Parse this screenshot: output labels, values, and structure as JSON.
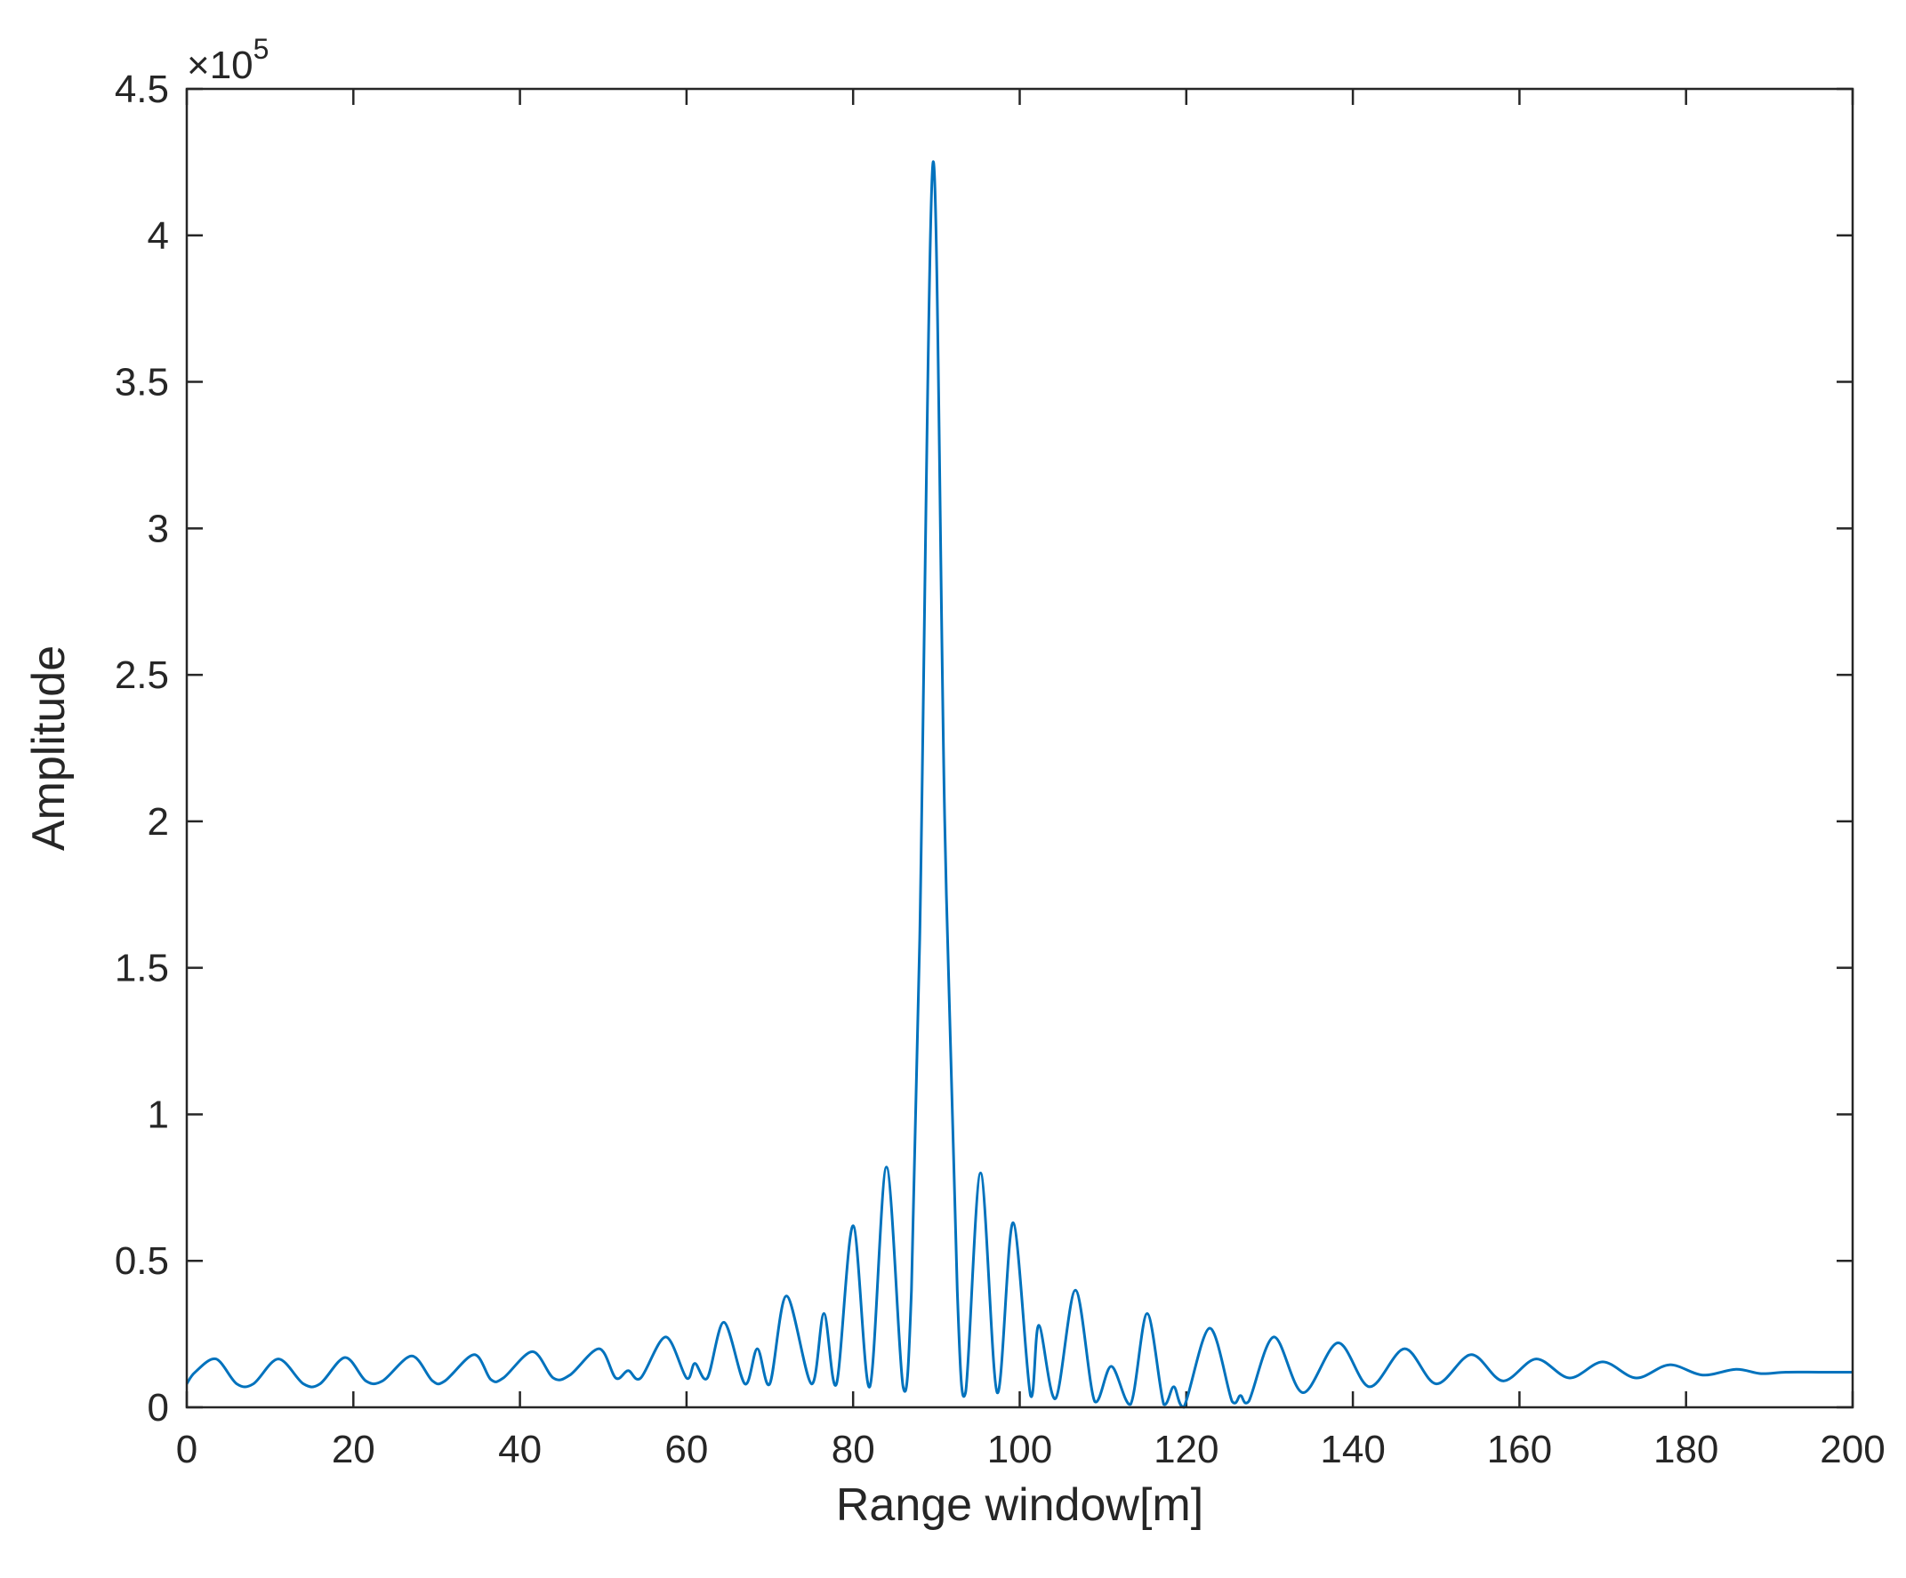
{
  "chart_data": {
    "type": "line",
    "title": "",
    "xlabel": "Range window[m]",
    "ylabel": "Amplitude",
    "xlim": [
      0,
      200
    ],
    "ylim": [
      0,
      4.5
    ],
    "y_exponent_label": "×10",
    "y_exponent_power": "5",
    "x_ticks": [
      0,
      20,
      40,
      60,
      80,
      100,
      120,
      140,
      160,
      180,
      200
    ],
    "x_tick_labels": [
      "0",
      "20",
      "40",
      "60",
      "80",
      "100",
      "120",
      "140",
      "160",
      "180",
      "200"
    ],
    "y_ticks": [
      0,
      0.5,
      1,
      1.5,
      2,
      2.5,
      3,
      3.5,
      4,
      4.5
    ],
    "y_tick_labels": [
      "0",
      "0.5",
      "1",
      "1.5",
      "2",
      "2.5",
      "3",
      "3.5",
      "4",
      "4.5"
    ],
    "grid": false,
    "series": [
      {
        "color": "#0072BD",
        "x": [
          0,
          1,
          3.5,
          6,
          8,
          11,
          14,
          16,
          19,
          21.5,
          23.5,
          27,
          29.5,
          31,
          34.5,
          36.5,
          38,
          41.5,
          44,
          46,
          49.5,
          51.5,
          53,
          54.5,
          57.5,
          60,
          61,
          62.5,
          64.5,
          67,
          68.5,
          70,
          72,
          75,
          76.5,
          78,
          80,
          82,
          84,
          86,
          87,
          88,
          89.6,
          91,
          92.5,
          93.5,
          95.3,
          97.3,
          99.2,
          101.3,
          102.3,
          104.3,
          106.7,
          109,
          111,
          113.3,
          115.3,
          117.3,
          118.5,
          119.7,
          122.8,
          125.5,
          126.5,
          127.5,
          130.5,
          134,
          138.2,
          142,
          146.2,
          150,
          154.2,
          158,
          162,
          166,
          170,
          174,
          178,
          182,
          186,
          189,
          192,
          196,
          200
        ],
        "y": [
          0.08,
          0.12,
          0.165,
          0.08,
          0.08,
          0.165,
          0.08,
          0.08,
          0.17,
          0.09,
          0.09,
          0.175,
          0.09,
          0.09,
          0.18,
          0.095,
          0.1,
          0.19,
          0.1,
          0.11,
          0.2,
          0.1,
          0.125,
          0.1,
          0.24,
          0.1,
          0.15,
          0.1,
          0.29,
          0.08,
          0.2,
          0.08,
          0.38,
          0.08,
          0.32,
          0.08,
          0.62,
          0.07,
          0.82,
          0.07,
          0.4,
          1.6,
          4.25,
          2.0,
          0.4,
          0.05,
          0.8,
          0.05,
          0.63,
          0.04,
          0.28,
          0.03,
          0.4,
          0.02,
          0.14,
          0.01,
          0.32,
          0.01,
          0.07,
          0.0,
          0.27,
          0.02,
          0.04,
          0.02,
          0.24,
          0.05,
          0.22,
          0.07,
          0.2,
          0.08,
          0.18,
          0.09,
          0.165,
          0.1,
          0.155,
          0.1,
          0.145,
          0.11,
          0.13,
          0.115,
          0.12,
          0.12,
          0.12
        ]
      }
    ]
  }
}
